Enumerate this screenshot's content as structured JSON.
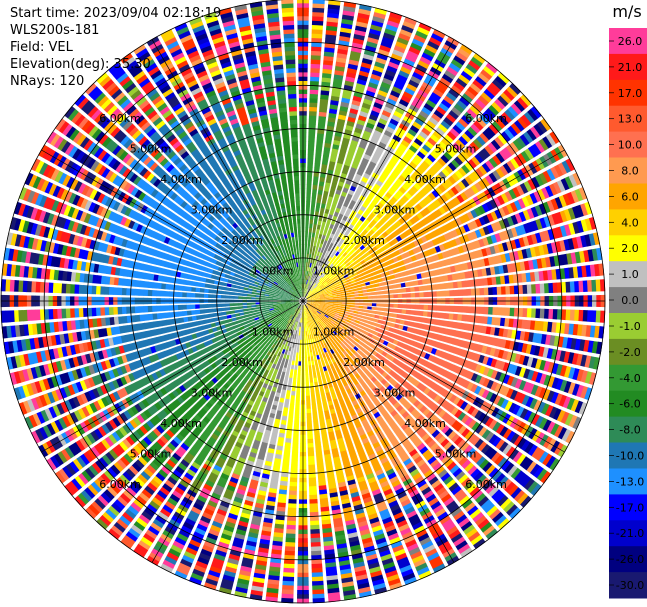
{
  "info": {
    "start_time": "Start time: 2023/09/04 02:18:19",
    "instrument": "WLS200s-181",
    "field": "Field: VEL",
    "elevation": "Elevation(deg): 35.30",
    "nrays": "NRays: 120"
  },
  "chart_data": {
    "type": "heatmap",
    "projection": "polar-ppi",
    "field": "VEL",
    "units": "m/s",
    "n_rays": 120,
    "elevation_deg": 35.3,
    "max_range_km": 7.0,
    "range_ring_km": [
      1.0,
      2.0,
      3.0,
      4.0,
      5.0,
      6.0,
      7.0
    ],
    "range_ring_label_text": [
      "1.00km",
      "2.00km",
      "3.00km",
      "4.00km",
      "5.00km",
      "6.00km"
    ],
    "colorbar": {
      "unit_label": "m/s",
      "tick_labels": [
        "26.0",
        "21.0",
        "17.0",
        "13.0",
        "10.0",
        "8.0",
        "6.0",
        "4.0",
        "2.0",
        "1.0",
        "0.0",
        "-1.0",
        "-2.0",
        "-4.0",
        "-6.0",
        "-8.0",
        "-10.0",
        "-13.0",
        "-17.0",
        "-21.0",
        "-26.0",
        "-30.0"
      ],
      "colors": [
        "#ff3c9a",
        "#ff1a1a",
        "#ff3300",
        "#ff5a2e",
        "#ff7050",
        "#ff9a50",
        "#ffa500",
        "#ffd000",
        "#ffff00",
        "#c0c0c0",
        "#808080",
        "#9acd32",
        "#6b8e23",
        "#339933",
        "#228b22",
        "#2e8b57",
        "#1f77b4",
        "#1e90ff",
        "#0000ff",
        "#0000cd",
        "#000080",
        "#191970"
      ]
    },
    "velocity_pattern": {
      "description_note": "",
      "towards_azimuth_deg": 290,
      "max_abs_velocity_mps": 11,
      "clean_range_km": 4.3,
      "noise_range_km": 5.2
    }
  }
}
